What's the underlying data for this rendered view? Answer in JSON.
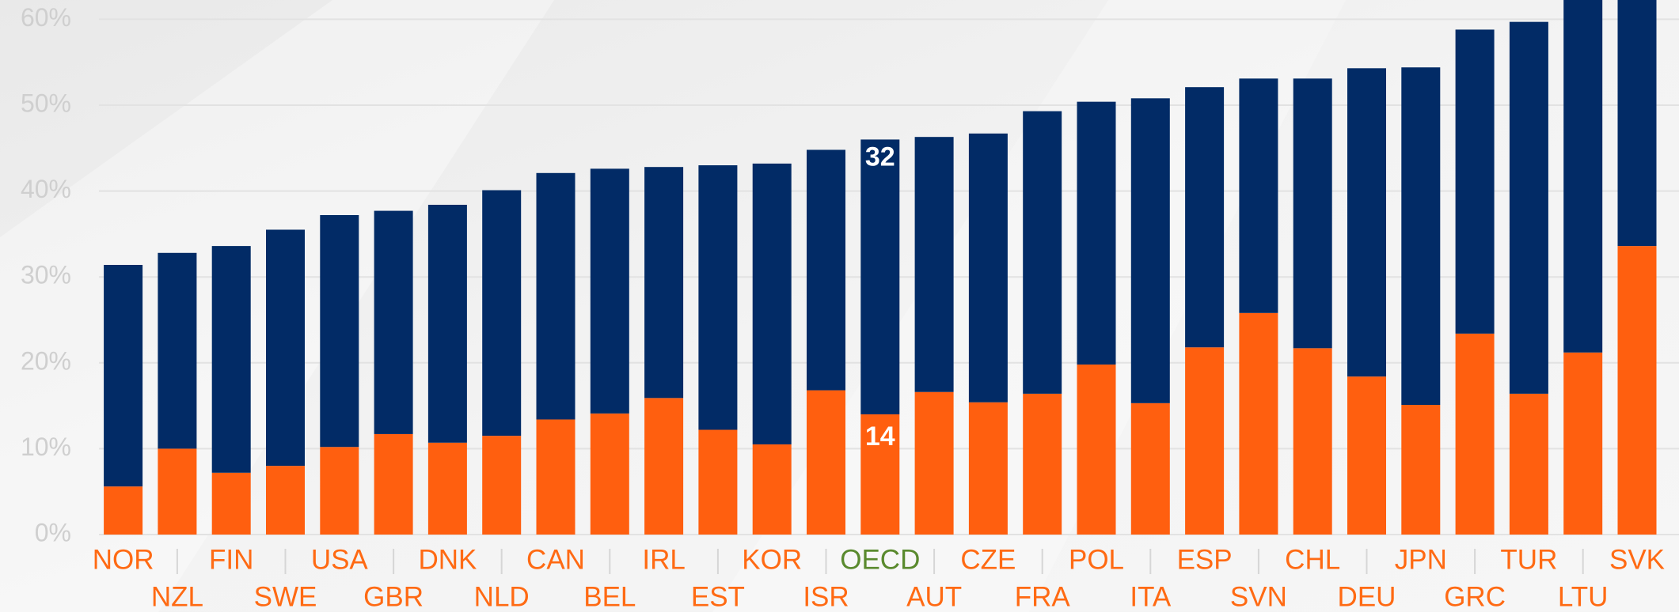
{
  "chart_data": {
    "type": "stacked_bar",
    "categories": [
      "NOR",
      "NZL",
      "FIN",
      "SWE",
      "USA",
      "GBR",
      "DNK",
      "NLD",
      "CAN",
      "BEL",
      "IRL",
      "EST",
      "KOR",
      "ISR",
      "OECD",
      "AUT",
      "CZE",
      "FRA",
      "POL",
      "ITA",
      "ESP",
      "SVN",
      "CHL",
      "DEU",
      "JPN",
      "GRC",
      "TUR",
      "LTU",
      "SVK"
    ],
    "series": [
      {
        "color": "#ff5f0f",
        "values": [
          5.6,
          10.0,
          7.2,
          8.0,
          10.2,
          11.7,
          10.7,
          11.5,
          13.4,
          14.1,
          15.9,
          12.2,
          10.5,
          16.8,
          14,
          16.6,
          15.4,
          16.4,
          19.8,
          15.3,
          21.8,
          25.8,
          21.7,
          18.4,
          15.1,
          23.4,
          16.4,
          21.2,
          33.6
        ]
      },
      {
        "color": "#022b66",
        "values": [
          25.8,
          22.8,
          26.4,
          27.5,
          27.0,
          26.0,
          27.7,
          28.6,
          28.7,
          28.5,
          26.9,
          30.8,
          32.7,
          28.0,
          32,
          29.7,
          31.3,
          32.9,
          30.6,
          35.5,
          30.3,
          27.3,
          31.4,
          35.9,
          39.3,
          35.4,
          43.3,
          41.8,
          31.4
        ]
      }
    ],
    "highlight": "OECD",
    "category_color": "#ff6a13",
    "highlight_color": "#5a8a2e",
    "ylim": [
      0,
      62
    ],
    "yticks": [
      {
        "value": 0,
        "label": "0%"
      },
      {
        "value": 10,
        "label": "10%"
      },
      {
        "value": 20,
        "label": "20%"
      },
      {
        "value": 30,
        "label": "30%"
      },
      {
        "value": 40,
        "label": "40%"
      },
      {
        "value": 50,
        "label": "50%"
      },
      {
        "value": 60,
        "label": "60%"
      }
    ],
    "grid": true
  }
}
